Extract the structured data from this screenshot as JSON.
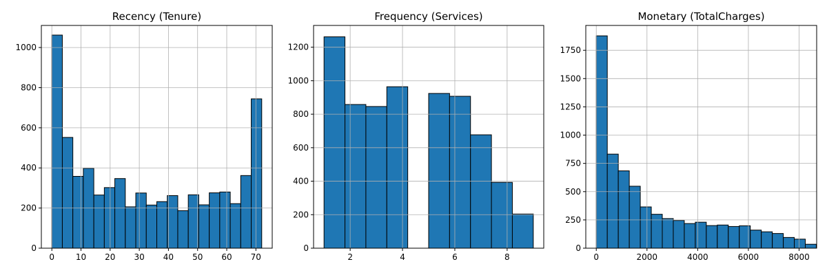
{
  "chart_data": [
    {
      "type": "bar",
      "title": "Recency (Tenure)",
      "xlabel": "",
      "ylabel": "",
      "bar_color": "#1f77b4",
      "edge_color": "#000000",
      "grid": true,
      "xlim": [
        -3.6,
        75.6
      ],
      "ylim": [
        0,
        1110
      ],
      "xticks": [
        0,
        10,
        20,
        30,
        40,
        50,
        60,
        70
      ],
      "yticks": [
        0,
        200,
        400,
        600,
        800,
        1000
      ],
      "bins": [
        {
          "start": 0.0,
          "end": 3.6,
          "value": 1062
        },
        {
          "start": 3.6,
          "end": 7.2,
          "value": 552
        },
        {
          "start": 7.2,
          "end": 10.8,
          "value": 358
        },
        {
          "start": 10.8,
          "end": 14.4,
          "value": 398
        },
        {
          "start": 14.4,
          "end": 18.0,
          "value": 265
        },
        {
          "start": 18.0,
          "end": 21.6,
          "value": 302
        },
        {
          "start": 21.6,
          "end": 25.2,
          "value": 347
        },
        {
          "start": 25.2,
          "end": 28.8,
          "value": 206
        },
        {
          "start": 28.8,
          "end": 32.4,
          "value": 275
        },
        {
          "start": 32.4,
          "end": 36.0,
          "value": 215
        },
        {
          "start": 36.0,
          "end": 39.6,
          "value": 232
        },
        {
          "start": 39.6,
          "end": 43.2,
          "value": 262
        },
        {
          "start": 43.2,
          "end": 46.8,
          "value": 187
        },
        {
          "start": 46.8,
          "end": 50.4,
          "value": 266
        },
        {
          "start": 50.4,
          "end": 54.0,
          "value": 216
        },
        {
          "start": 54.0,
          "end": 57.6,
          "value": 276
        },
        {
          "start": 57.6,
          "end": 61.2,
          "value": 280
        },
        {
          "start": 61.2,
          "end": 64.8,
          "value": 222
        },
        {
          "start": 64.8,
          "end": 68.4,
          "value": 362
        },
        {
          "start": 68.4,
          "end": 72.0,
          "value": 744
        }
      ]
    },
    {
      "type": "bar",
      "title": "Frequency (Services)",
      "xlabel": "",
      "ylabel": "",
      "bar_color": "#1f77b4",
      "edge_color": "#000000",
      "grid": true,
      "xlim": [
        0.6,
        9.4
      ],
      "ylim": [
        0,
        1330
      ],
      "xticks": [
        2,
        4,
        6,
        8
      ],
      "yticks": [
        0,
        200,
        400,
        600,
        800,
        1000,
        1200
      ],
      "bins": [
        {
          "start": 1.0,
          "end": 1.8,
          "value": 1262
        },
        {
          "start": 1.8,
          "end": 2.6,
          "value": 858
        },
        {
          "start": 2.6,
          "end": 3.4,
          "value": 846
        },
        {
          "start": 3.4,
          "end": 4.2,
          "value": 964
        },
        {
          "start": 4.2,
          "end": 5.0,
          "value": 0
        },
        {
          "start": 5.0,
          "end": 5.8,
          "value": 924
        },
        {
          "start": 5.8,
          "end": 6.6,
          "value": 907
        },
        {
          "start": 6.6,
          "end": 7.4,
          "value": 677
        },
        {
          "start": 7.4,
          "end": 8.2,
          "value": 393
        },
        {
          "start": 8.2,
          "end": 9.0,
          "value": 204
        }
      ]
    },
    {
      "type": "bar",
      "title": "Monetary (TotalCharges)",
      "xlabel": "",
      "ylabel": "",
      "bar_color": "#1f77b4",
      "edge_color": "#000000",
      "grid": true,
      "xlim": [
        -414,
        8694
      ],
      "ylim": [
        0,
        1970
      ],
      "xticks": [
        0,
        2000,
        4000,
        6000,
        8000
      ],
      "yticks": [
        0,
        250,
        500,
        750,
        1000,
        1250,
        1500,
        1750
      ],
      "bins": [
        {
          "start": 0,
          "end": 434,
          "value": 1878
        },
        {
          "start": 434,
          "end": 868,
          "value": 832
        },
        {
          "start": 868,
          "end": 1302,
          "value": 684
        },
        {
          "start": 1302,
          "end": 1736,
          "value": 548
        },
        {
          "start": 1736,
          "end": 2170,
          "value": 365
        },
        {
          "start": 2170,
          "end": 2604,
          "value": 300
        },
        {
          "start": 2604,
          "end": 3038,
          "value": 262
        },
        {
          "start": 3038,
          "end": 3472,
          "value": 245
        },
        {
          "start": 3472,
          "end": 3906,
          "value": 218
        },
        {
          "start": 3906,
          "end": 4340,
          "value": 230
        },
        {
          "start": 4340,
          "end": 4774,
          "value": 200
        },
        {
          "start": 4774,
          "end": 5208,
          "value": 205
        },
        {
          "start": 5208,
          "end": 5642,
          "value": 192
        },
        {
          "start": 5642,
          "end": 6076,
          "value": 198
        },
        {
          "start": 6076,
          "end": 6510,
          "value": 160
        },
        {
          "start": 6510,
          "end": 6944,
          "value": 145
        },
        {
          "start": 6944,
          "end": 7378,
          "value": 130
        },
        {
          "start": 7378,
          "end": 7812,
          "value": 95
        },
        {
          "start": 7812,
          "end": 8246,
          "value": 80
        },
        {
          "start": 8246,
          "end": 8680,
          "value": 35
        }
      ]
    }
  ]
}
